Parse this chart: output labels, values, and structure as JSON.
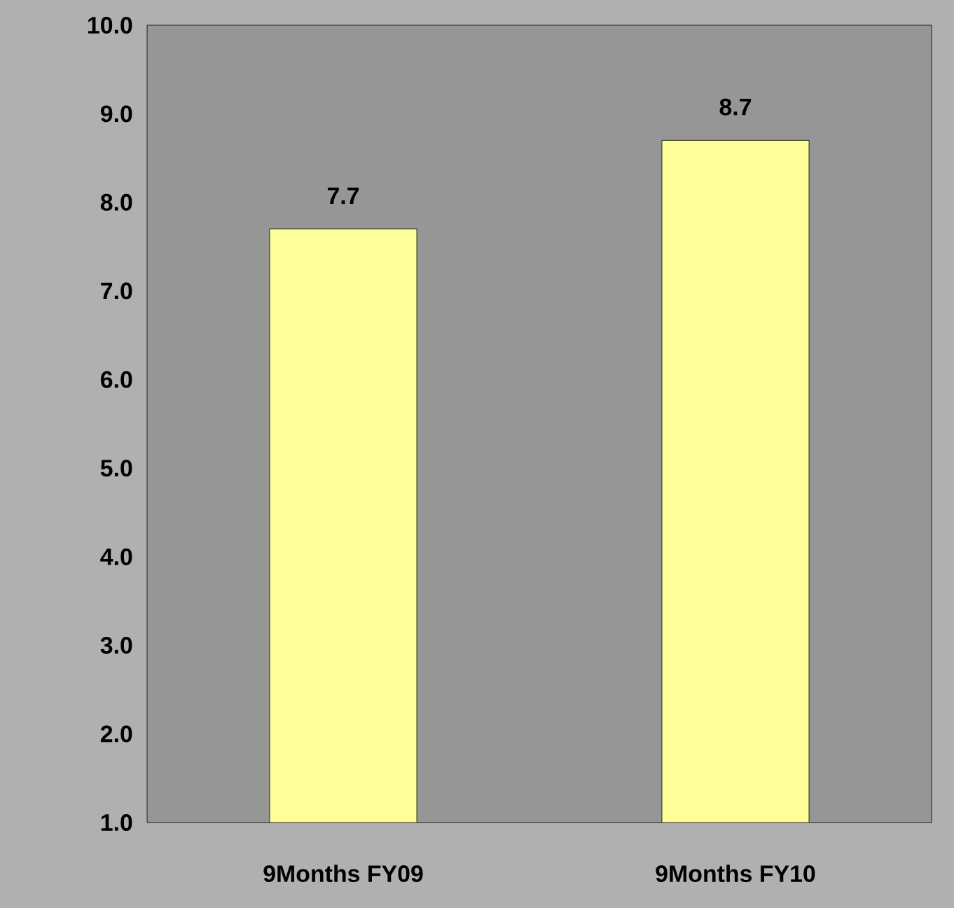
{
  "chart_data": {
    "type": "bar",
    "categories": [
      "9Months FY09",
      "9Months FY10"
    ],
    "values": [
      7.7,
      8.7
    ],
    "color": "#ffff99",
    "data_labels": true,
    "ylim": [
      1,
      10
    ],
    "yticks": [
      {
        "value": 1,
        "label": "1.0"
      },
      {
        "value": 2,
        "label": "2.0"
      },
      {
        "value": 3,
        "label": "3.0"
      },
      {
        "value": 4,
        "label": "4.0"
      },
      {
        "value": 5,
        "label": "5.0"
      },
      {
        "value": 6,
        "label": "6.0"
      },
      {
        "value": 7,
        "label": "7.0"
      },
      {
        "value": 8,
        "label": "8.0"
      },
      {
        "value": 9,
        "label": "9.0"
      },
      {
        "value": 10,
        "label": "10.0"
      }
    ]
  }
}
